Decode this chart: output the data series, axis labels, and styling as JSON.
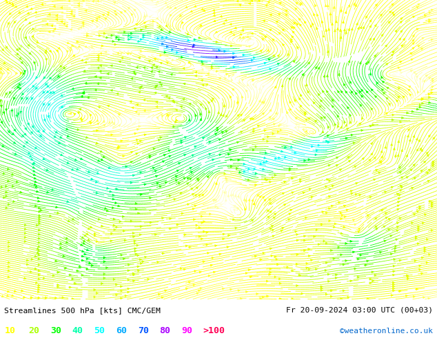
{
  "title_left": "Streamlines 500 hPa [kts] CMC/GEM",
  "title_right": "Fr 20-09-2024 03:00 UTC (00+03)",
  "credit": "©weatheronline.co.uk",
  "legend_values": [
    "10",
    "20",
    "30",
    "40",
    "50",
    "60",
    "70",
    "80",
    "90",
    ">100"
  ],
  "legend_colors": [
    "#ffff00",
    "#aaff00",
    "#00ff00",
    "#00ffaa",
    "#00ffff",
    "#00aaff",
    "#0055ff",
    "#aa00ff",
    "#ff00ff",
    "#ff0055"
  ],
  "background_color": "#ffffff",
  "figsize": [
    6.34,
    4.9
  ],
  "dpi": 100,
  "colormap_speeds": [
    0,
    10,
    20,
    30,
    40,
    50,
    60,
    70,
    80,
    90,
    100,
    110
  ],
  "colormap_hex": [
    "#ffffff",
    "#ffff00",
    "#ccff00",
    "#00ff00",
    "#00ffcc",
    "#00ffff",
    "#00aaff",
    "#0033ff",
    "#8800ff",
    "#ff00ff",
    "#ff0066",
    "#ff0000"
  ]
}
